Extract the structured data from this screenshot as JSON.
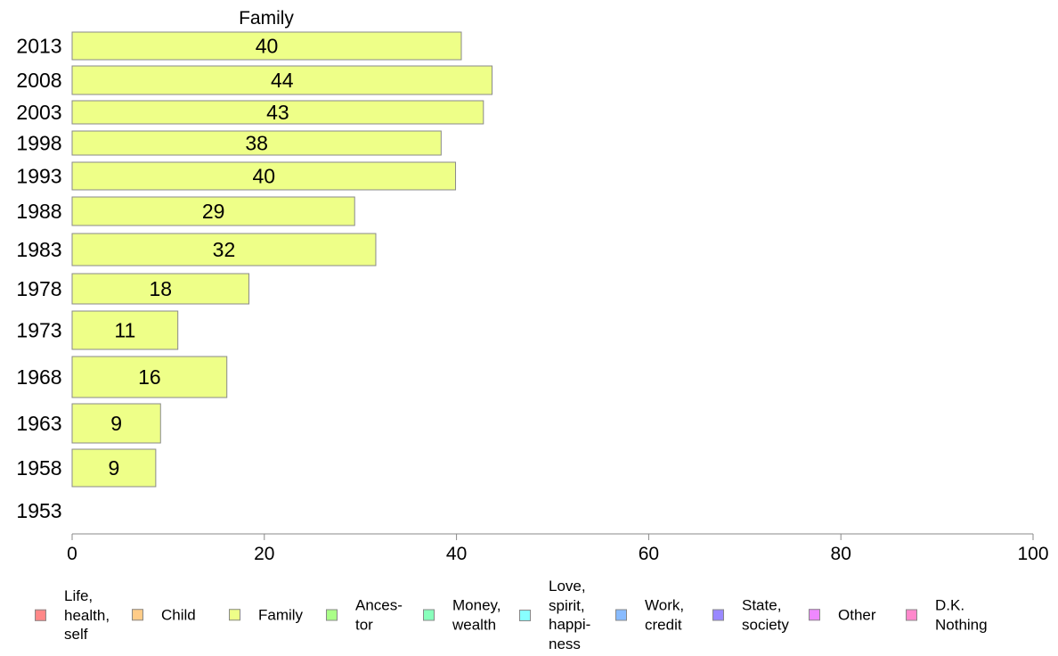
{
  "chart_data": {
    "type": "bar",
    "orientation": "horizontal",
    "title": "Family",
    "categories": [
      "2013",
      "2008",
      "2003",
      "1998",
      "1993",
      "1988",
      "1983",
      "1978",
      "1973",
      "1968",
      "1963",
      "1958",
      "1953"
    ],
    "series": [
      {
        "name": "Family",
        "color": "#eeff88",
        "values": [
          40,
          44,
          43,
          38,
          40,
          29,
          32,
          18,
          11,
          16,
          9,
          9,
          null
        ],
        "labels": [
          "40",
          "44",
          "43",
          "38",
          "40",
          "29",
          "32",
          "18",
          "11",
          "16",
          "9",
          "9",
          ""
        ]
      }
    ],
    "plotted_values": [
      40.5,
      43.7,
      42.8,
      38.4,
      39.9,
      29.4,
      31.6,
      18.4,
      11.0,
      16.1,
      9.2,
      8.7,
      null
    ],
    "xlim": [
      0,
      100
    ],
    "xticks": [
      0,
      20,
      40,
      60,
      80,
      100
    ],
    "xtick_labels": [
      "0",
      "20",
      "40",
      "60",
      "80",
      "100"
    ],
    "grid": false,
    "legend_position": "bottom",
    "legend": [
      {
        "label": "Life,\nhealth,\nself",
        "color": "#ff8888"
      },
      {
        "label": "Child",
        "color": "#ffcc88"
      },
      {
        "label": "Family",
        "color": "#eeff88"
      },
      {
        "label": "Ances-\ntor",
        "color": "#aaff88"
      },
      {
        "label": "Money,\nwealth",
        "color": "#88ffbb"
      },
      {
        "label": "Love,\nspirit,\nhappi-\nness",
        "color": "#88ffff"
      },
      {
        "label": "Work,\ncredit",
        "color": "#88bbff"
      },
      {
        "label": "State,\nsociety",
        "color": "#9988ff"
      },
      {
        "label": "Other",
        "color": "#ee88ff"
      },
      {
        "label": "D.K.\nNothing",
        "color": "#ff88cc"
      }
    ]
  }
}
